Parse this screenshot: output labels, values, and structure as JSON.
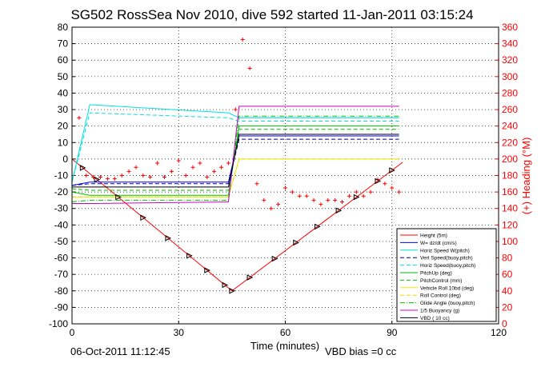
{
  "chart_data": {
    "type": "line",
    "title": "SG502 RossSea Nov 2010, dive 592 started 11-Jan-2011 03:15:24",
    "xlabel": "Time (minutes)",
    "ylabel_right": "(+) Heading (°M)",
    "xlim": [
      0,
      120
    ],
    "ylim": [
      -100,
      80
    ],
    "ylim_right": [
      0,
      360
    ],
    "x_ticks": [
      0,
      30,
      60,
      90,
      120
    ],
    "y_ticks": [
      80,
      70,
      60,
      50,
      40,
      30,
      20,
      10,
      0,
      -10,
      -20,
      -30,
      -40,
      -50,
      -60,
      -70,
      -80,
      -90,
      -100
    ],
    "y_ticks_right": [
      360,
      340,
      320,
      300,
      280,
      260,
      240,
      220,
      200,
      180,
      160,
      140,
      120,
      100,
      80,
      60,
      40,
      20,
      0
    ],
    "grid": true,
    "legend_position": "bottom-right",
    "series": [
      {
        "name": "Height (5m)",
        "color": "#ff0000",
        "style": "solid",
        "x": [
          0,
          45,
          93
        ],
        "y": [
          0,
          -80,
          -2
        ]
      },
      {
        "name": "W= dz/dt (cm/s)",
        "color": "#0000ff",
        "style": "solid",
        "x": [
          0,
          5,
          44,
          47,
          92
        ],
        "y": [
          -16,
          -14,
          -14,
          14,
          14
        ]
      },
      {
        "name": "Horiz Speed W(pitch)",
        "color": "#00e0e0",
        "style": "solid",
        "x": [
          0,
          5,
          44,
          47,
          92
        ],
        "y": [
          -14,
          33,
          28,
          25,
          25
        ]
      },
      {
        "name": "Vert Speed(buoy,pitch)",
        "color": "#0000aa",
        "style": "dashed",
        "x": [
          0,
          5,
          44,
          47,
          92
        ],
        "y": [
          -16,
          -15,
          -15,
          12,
          12
        ]
      },
      {
        "name": "Horiz Speed(buoy,pitch)",
        "color": "#00e0e0",
        "style": "dashed",
        "x": [
          0,
          5,
          44,
          47,
          92
        ],
        "y": [
          -14,
          28,
          25,
          23,
          23
        ]
      },
      {
        "name": "PitchUp (deg)",
        "color": "#00c000",
        "style": "solid",
        "x": [
          0,
          5,
          44,
          47,
          92
        ],
        "y": [
          -20,
          -22,
          -22,
          20,
          20
        ]
      },
      {
        "name": "PitchControl (mm)",
        "color": "#00c000",
        "style": "dashed",
        "x": [
          0,
          5,
          44,
          47,
          92
        ],
        "y": [
          -18,
          -19,
          -19,
          18,
          18
        ]
      },
      {
        "name": "Vehicle Roll 10bd (deg)",
        "color": "#ffe000",
        "style": "solid",
        "x": [
          0,
          44,
          47,
          92
        ],
        "y": [
          -23,
          -23,
          0,
          0
        ]
      },
      {
        "name": "Roll Control (deg)",
        "color": "#e0e000",
        "style": "dashed",
        "x": [
          0,
          44,
          47,
          92
        ],
        "y": [
          -23,
          -23,
          0,
          0
        ]
      },
      {
        "name": "Glide Angle (buoy,pitch)",
        "color": "#00c000",
        "style": "dashdot",
        "x": [
          0,
          5,
          44,
          47,
          92
        ],
        "y": [
          -26,
          -25,
          -25,
          26,
          26
        ]
      },
      {
        "name": "1/5 Buoyancy (g)",
        "color": "#cc00cc",
        "style": "solid",
        "x": [
          0,
          5,
          44,
          47,
          92
        ],
        "y": [
          -27,
          -27,
          -26,
          32,
          32
        ]
      },
      {
        "name": "VBD ( 10 cc)",
        "color": "#000000",
        "style": "solid",
        "x": [
          0,
          5,
          44,
          47,
          92
        ],
        "y": [
          -17,
          -17,
          -17,
          15,
          15
        ]
      }
    ],
    "heading": {
      "name": "(+) Heading (°M)",
      "color": "#ff0000",
      "marker": "+",
      "x": [
        2,
        4,
        6,
        8,
        10,
        12,
        14,
        16,
        18,
        20,
        22,
        24,
        26,
        28,
        30,
        32,
        34,
        36,
        38,
        40,
        42,
        44,
        46,
        48,
        50,
        52,
        54,
        56,
        58,
        60,
        62,
        64,
        66,
        68,
        70,
        72,
        74,
        76,
        78,
        80,
        82,
        84,
        86,
        88,
        90,
        92
      ],
      "y": [
        250,
        180,
        178,
        178,
        176,
        176,
        180,
        185,
        190,
        180,
        178,
        195,
        178,
        185,
        198,
        180,
        190,
        195,
        178,
        185,
        190,
        195,
        260,
        345,
        310,
        170,
        150,
        140,
        145,
        165,
        160,
        155,
        155,
        150,
        145,
        150,
        150,
        148,
        155,
        160,
        155,
        160,
        175,
        170,
        165,
        160
      ]
    },
    "markers_on_height": {
      "symbol": "triangle",
      "color": "#000000"
    }
  },
  "footer": {
    "timestamp": "06-Oct-2011 11:12:45",
    "vbd_bias": "VBD bias =0 cc"
  }
}
